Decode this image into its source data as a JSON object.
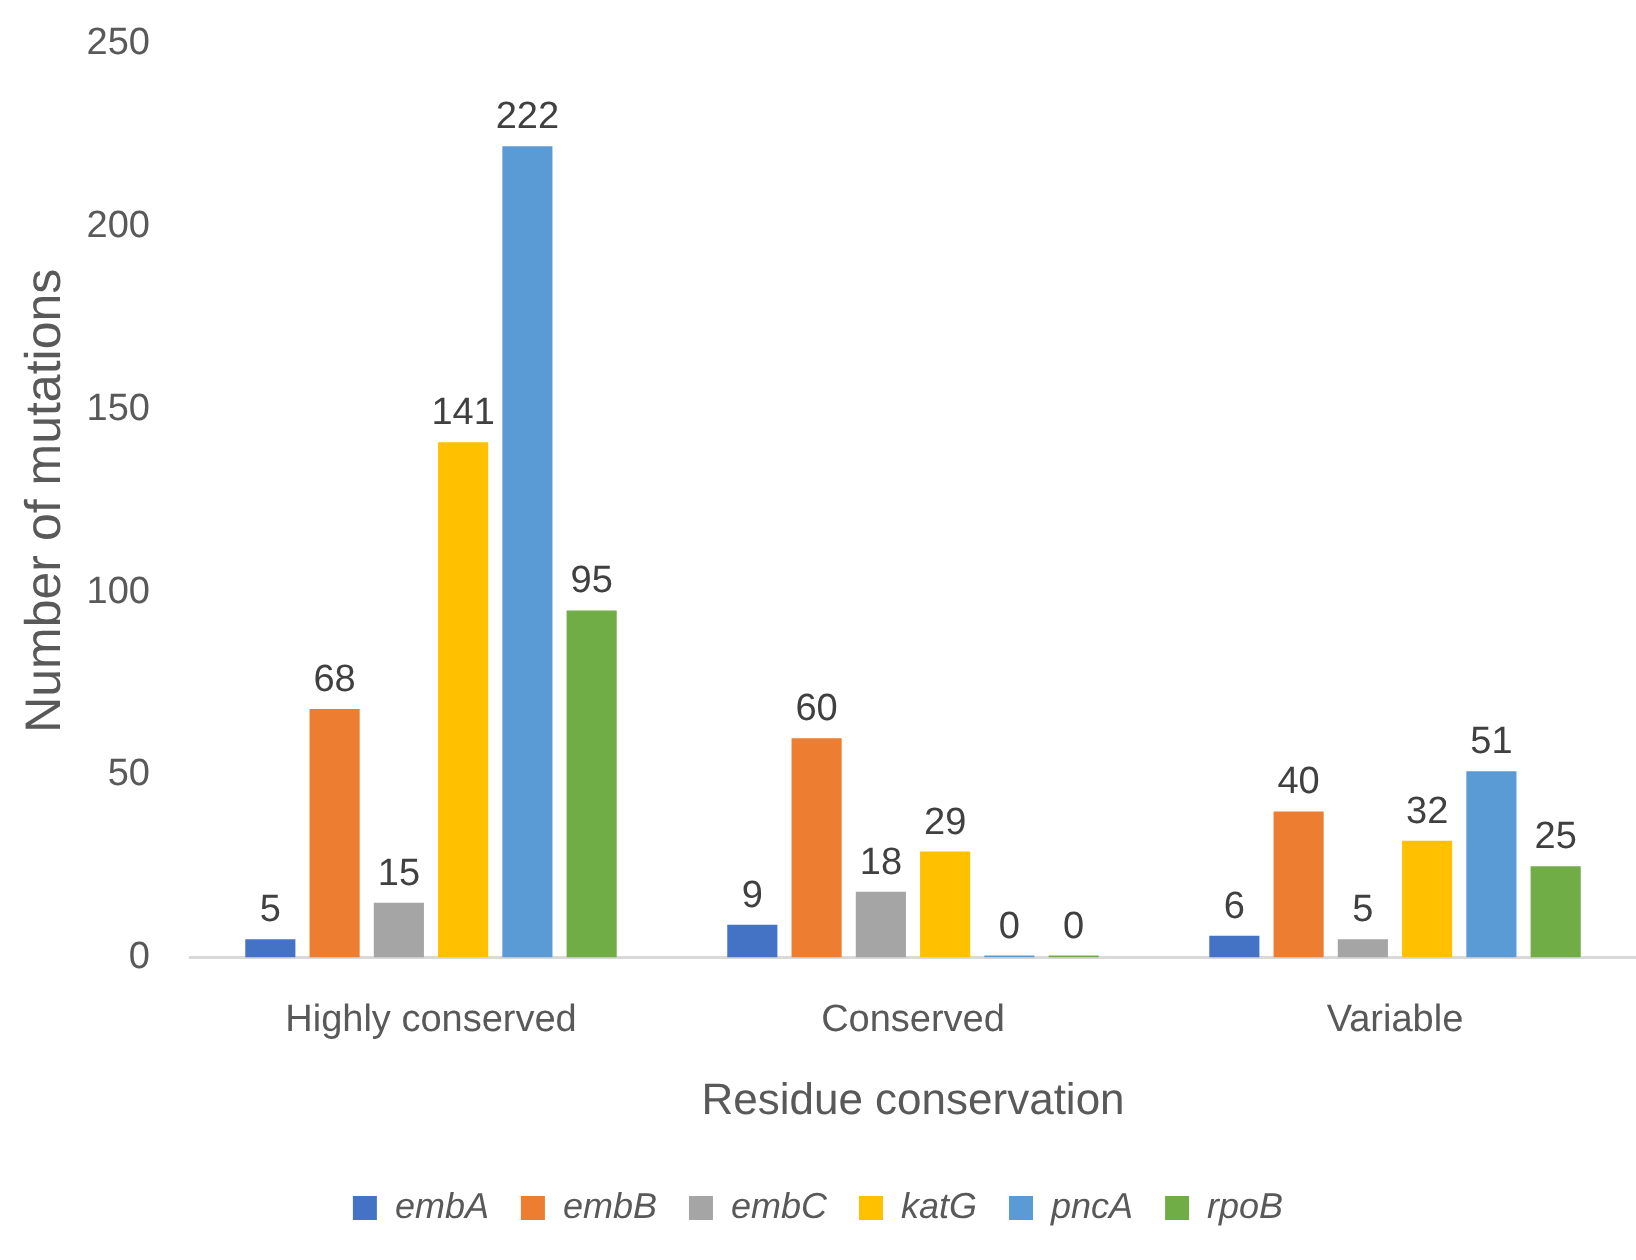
{
  "chart_data": {
    "type": "bar",
    "xlabel": "Residue conservation",
    "ylabel": "Number of mutations",
    "categories": [
      "Highly conserved",
      "Conserved",
      "Variable"
    ],
    "series": [
      {
        "name": "embA",
        "color": "#4472c4",
        "values": [
          5,
          9,
          6
        ]
      },
      {
        "name": "embB",
        "color": "#ed7d31",
        "values": [
          68,
          60,
          40
        ]
      },
      {
        "name": "embC",
        "color": "#a5a5a5",
        "values": [
          15,
          18,
          5
        ]
      },
      {
        "name": "katG",
        "color": "#ffc000",
        "values": [
          141,
          29,
          32
        ]
      },
      {
        "name": "pncA",
        "color": "#5b9bd5",
        "values": [
          222,
          0,
          51
        ]
      },
      {
        "name": "rpoB",
        "color": "#70ad47",
        "values": [
          95,
          0,
          25
        ]
      }
    ],
    "ylim": [
      0,
      250
    ],
    "yticks": [
      0,
      50,
      100,
      150,
      200,
      250
    ],
    "grid": false,
    "legend": "bottom",
    "data_labels": true
  }
}
